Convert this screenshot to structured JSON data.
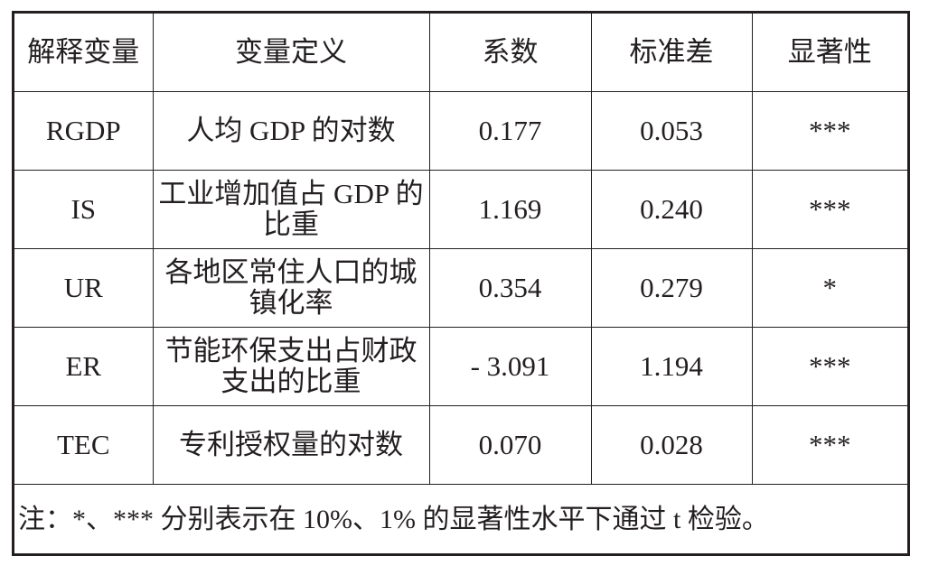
{
  "table": {
    "headers": [
      "解释变量",
      "变量定义",
      "系数",
      "标准差",
      "显著性"
    ],
    "rows": [
      {
        "variable": "RGDP",
        "definition": "人均 GDP 的对数",
        "coefficient": "0.177",
        "std_error": "0.053",
        "significance": "***"
      },
      {
        "variable": "IS",
        "definition": "工业增加值占 GDP 的比重",
        "coefficient": "1.169",
        "std_error": "0.240",
        "significance": "***"
      },
      {
        "variable": "UR",
        "definition": "各地区常住人口的城镇化率",
        "coefficient": "0.354",
        "std_error": "0.279",
        "significance": "*"
      },
      {
        "variable": "ER",
        "definition": "节能环保支出占财政支出的比重",
        "coefficient": "- 3.091",
        "std_error": "1.194",
        "significance": "***"
      },
      {
        "variable": "TEC",
        "definition": "专利授权量的对数",
        "coefficient": "0.070",
        "std_error": "0.028",
        "significance": "***"
      }
    ]
  },
  "note": "注：*、*** 分别表示在 10%、1% 的显著性水平下通过 t 检验。"
}
